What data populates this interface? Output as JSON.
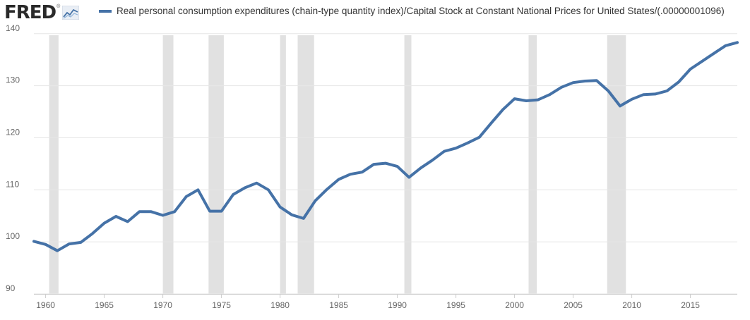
{
  "header": {
    "logo_text": "FRED",
    "logo_mark": "®",
    "logo_icon": "line-chart-icon"
  },
  "colors": {
    "series": "#4572a7",
    "recession": "#e1e1e1",
    "grid": "#e6e6e6",
    "tick_text": "#666666"
  },
  "chart_data": {
    "type": "line",
    "title": "",
    "xlabel": "",
    "ylabel": "",
    "xlim": [
      1959,
      2019
    ],
    "ylim": [
      90,
      142
    ],
    "x_ticks": [
      1960,
      1965,
      1970,
      1975,
      1980,
      1985,
      1990,
      1995,
      2000,
      2005,
      2010,
      2015
    ],
    "y_ticks": [
      90,
      100,
      110,
      120,
      130,
      140
    ],
    "grid": "horizontal",
    "legend_position": "top-left",
    "series": [
      {
        "name": "Real personal consumption expenditures (chain-type quantity index)/Capital Stock at Constant National Prices for United States/(.00000001096)",
        "x": [
          1959,
          1960,
          1961,
          1962,
          1963,
          1964,
          1965,
          1966,
          1967,
          1968,
          1969,
          1970,
          1971,
          1972,
          1973,
          1974,
          1975,
          1976,
          1977,
          1978,
          1979,
          1980,
          1981,
          1982,
          1983,
          1984,
          1985,
          1986,
          1987,
          1988,
          1989,
          1990,
          1991,
          1992,
          1993,
          1994,
          1995,
          1996,
          1997,
          1998,
          1999,
          2000,
          2001,
          2002,
          2003,
          2004,
          2005,
          2006,
          2007,
          2008,
          2009,
          2010,
          2011,
          2012,
          2013,
          2014,
          2015,
          2016,
          2017,
          2018,
          2019
        ],
        "values": [
          100.1,
          99.5,
          98.3,
          99.6,
          99.9,
          101.6,
          103.6,
          104.9,
          103.9,
          105.8,
          105.8,
          105.1,
          105.8,
          108.7,
          110.0,
          105.9,
          105.9,
          109.1,
          110.4,
          111.3,
          110.0,
          106.7,
          105.2,
          104.5,
          107.9,
          110.1,
          112.0,
          113.0,
          113.4,
          114.9,
          115.1,
          114.5,
          112.4,
          114.2,
          115.7,
          117.4,
          118.0,
          119.0,
          120.1,
          122.8,
          125.4,
          127.5,
          127.1,
          127.3,
          128.3,
          129.7,
          130.6,
          130.9,
          131.0,
          129.0,
          126.1,
          127.4,
          128.3,
          128.4,
          129.0,
          130.7,
          133.2,
          134.7,
          136.2,
          137.7,
          138.3
        ]
      }
    ],
    "recessions": [
      [
        1960.3,
        1961.1
      ],
      [
        1970.0,
        1970.9
      ],
      [
        1973.9,
        1975.2
      ],
      [
        1980.0,
        1980.5
      ],
      [
        1981.5,
        1982.9
      ],
      [
        1990.6,
        1991.2
      ],
      [
        2001.2,
        2001.9
      ],
      [
        2007.9,
        2009.5
      ]
    ]
  }
}
